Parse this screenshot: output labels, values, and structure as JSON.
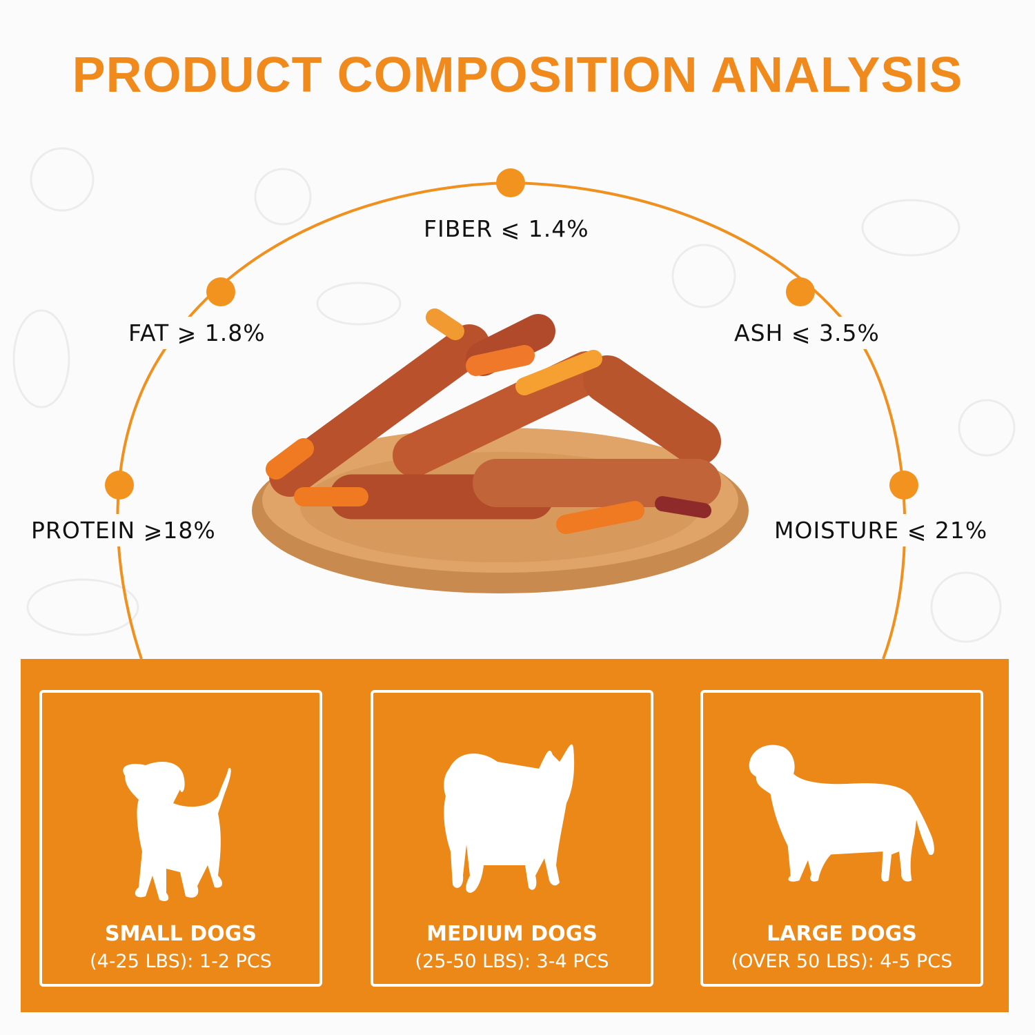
{
  "title": "PRODUCT COMPOSITION ANALYSIS",
  "accent_color": "#eb8817",
  "nutrients": [
    {
      "label": "FIBER ⩽ 1.4%"
    },
    {
      "label": "FAT ⩾ 1.8%"
    },
    {
      "label": "ASH ⩽ 3.5%"
    },
    {
      "label": "PROTEIN ⩾18%"
    },
    {
      "label": "MOISTURE ⩽ 21%"
    }
  ],
  "feeding_guide": [
    {
      "icon": "small-dog-icon",
      "title": "SMALL DOGS",
      "detail": "(4-25 LBS): 1-2 PCS"
    },
    {
      "icon": "medium-dog-icon",
      "title": "MEDIUM DOGS",
      "detail": "(25-50 LBS): 3-4 PCS"
    },
    {
      "icon": "large-dog-icon",
      "title": "LARGE DOGS",
      "detail": "(OVER 50 LBS): 4-5 PCS"
    }
  ]
}
